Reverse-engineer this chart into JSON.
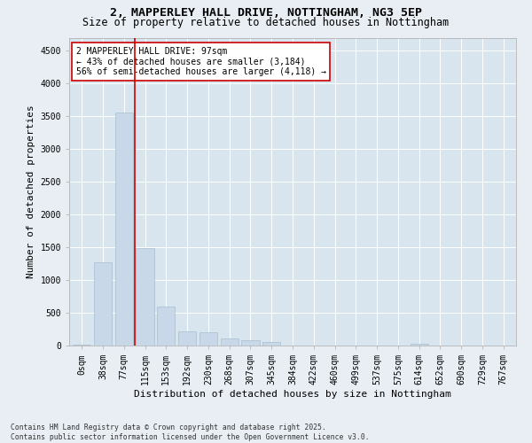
{
  "title_line1": "2, MAPPERLEY HALL DRIVE, NOTTINGHAM, NG3 5EP",
  "title_line2": "Size of property relative to detached houses in Nottingham",
  "xlabel": "Distribution of detached houses by size in Nottingham",
  "ylabel": "Number of detached properties",
  "bar_color": "#c8d8e8",
  "bar_edgecolor": "#a8c0d0",
  "vline_color": "#cc0000",
  "vline_x": 2.5,
  "annotation_text": "2 MAPPERLEY HALL DRIVE: 97sqm\n← 43% of detached houses are smaller (3,184)\n56% of semi-detached houses are larger (4,118) →",
  "annotation_box_facecolor": "#ffffff",
  "annotation_box_edgecolor": "#cc0000",
  "categories": [
    "0sqm",
    "38sqm",
    "77sqm",
    "115sqm",
    "153sqm",
    "192sqm",
    "230sqm",
    "268sqm",
    "307sqm",
    "345sqm",
    "384sqm",
    "422sqm",
    "460sqm",
    "499sqm",
    "537sqm",
    "575sqm",
    "614sqm",
    "652sqm",
    "690sqm",
    "729sqm",
    "767sqm"
  ],
  "values": [
    10,
    1270,
    3560,
    1490,
    600,
    210,
    200,
    110,
    80,
    50,
    0,
    0,
    0,
    0,
    0,
    0,
    30,
    0,
    0,
    0,
    0
  ],
  "ylim": [
    0,
    4700
  ],
  "yticks": [
    0,
    500,
    1000,
    1500,
    2000,
    2500,
    3000,
    3500,
    4000,
    4500
  ],
  "footer": "Contains HM Land Registry data © Crown copyright and database right 2025.\nContains public sector information licensed under the Open Government Licence v3.0.",
  "fig_bg_color": "#e8eef4",
  "plot_bg_color": "#d8e4ee",
  "title_fontsize": 9.5,
  "subtitle_fontsize": 8.5,
  "axis_label_fontsize": 8,
  "tick_fontsize": 7,
  "annotation_fontsize": 7,
  "footer_fontsize": 5.8
}
